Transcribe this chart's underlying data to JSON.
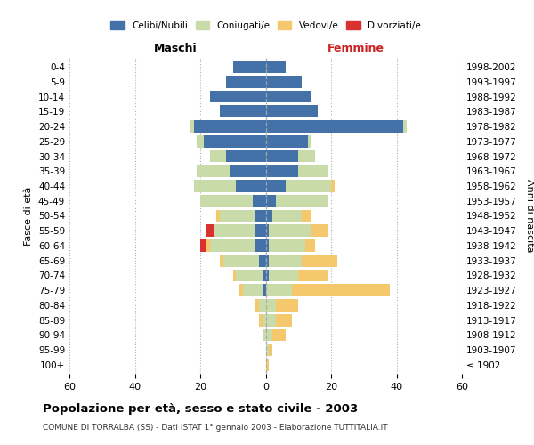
{
  "age_groups": [
    "100+",
    "95-99",
    "90-94",
    "85-89",
    "80-84",
    "75-79",
    "70-74",
    "65-69",
    "60-64",
    "55-59",
    "50-54",
    "45-49",
    "40-44",
    "35-39",
    "30-34",
    "25-29",
    "20-24",
    "15-19",
    "10-14",
    "5-9",
    "0-4"
  ],
  "birth_years": [
    "≤ 1902",
    "1903-1907",
    "1908-1912",
    "1913-1917",
    "1918-1922",
    "1923-1927",
    "1928-1932",
    "1933-1937",
    "1938-1942",
    "1943-1947",
    "1948-1952",
    "1953-1957",
    "1958-1962",
    "1963-1967",
    "1968-1972",
    "1973-1977",
    "1978-1982",
    "1983-1987",
    "1988-1992",
    "1993-1997",
    "1998-2002"
  ],
  "male": {
    "celibi": [
      0,
      0,
      0,
      0,
      0,
      1,
      1,
      2,
      3,
      3,
      3,
      4,
      9,
      11,
      12,
      19,
      22,
      14,
      17,
      12,
      10
    ],
    "coniugati": [
      0,
      0,
      1,
      1,
      2,
      6,
      8,
      11,
      14,
      13,
      11,
      16,
      13,
      10,
      5,
      2,
      1,
      0,
      0,
      0,
      0
    ],
    "vedovi": [
      0,
      0,
      0,
      1,
      1,
      1,
      1,
      1,
      1,
      0,
      1,
      0,
      0,
      0,
      0,
      0,
      0,
      0,
      0,
      0,
      0
    ],
    "divorziati": [
      0,
      0,
      0,
      0,
      0,
      0,
      0,
      0,
      2,
      2,
      0,
      0,
      0,
      0,
      0,
      0,
      0,
      0,
      0,
      0,
      0
    ]
  },
  "female": {
    "nubili": [
      0,
      0,
      0,
      0,
      0,
      0,
      1,
      1,
      1,
      1,
      2,
      3,
      6,
      10,
      10,
      13,
      42,
      16,
      14,
      11,
      6
    ],
    "coniugate": [
      0,
      1,
      2,
      3,
      3,
      8,
      9,
      10,
      11,
      13,
      9,
      16,
      14,
      9,
      5,
      1,
      1,
      0,
      0,
      0,
      0
    ],
    "vedove": [
      1,
      1,
      4,
      5,
      7,
      30,
      9,
      11,
      3,
      5,
      3,
      0,
      1,
      0,
      0,
      0,
      0,
      0,
      0,
      0,
      0
    ],
    "divorziate": [
      0,
      0,
      0,
      0,
      0,
      0,
      0,
      0,
      0,
      0,
      0,
      0,
      0,
      0,
      0,
      0,
      0,
      0,
      0,
      0,
      0
    ]
  },
  "colors": {
    "celibi": "#4472a8",
    "coniugati": "#c8dba8",
    "vedovi": "#f5c86e",
    "divorziati": "#d93030"
  },
  "xlim": 60,
  "title": "Popolazione per età, sesso e stato civile - 2003",
  "subtitle": "COMUNE DI TORRALBA (SS) - Dati ISTAT 1° gennaio 2003 - Elaborazione TUTTITALIA.IT",
  "ylabel": "Fasce di età",
  "ylabel_right": "Anni di nascita",
  "xlabel_left": "Maschi",
  "xlabel_right": "Femmine"
}
